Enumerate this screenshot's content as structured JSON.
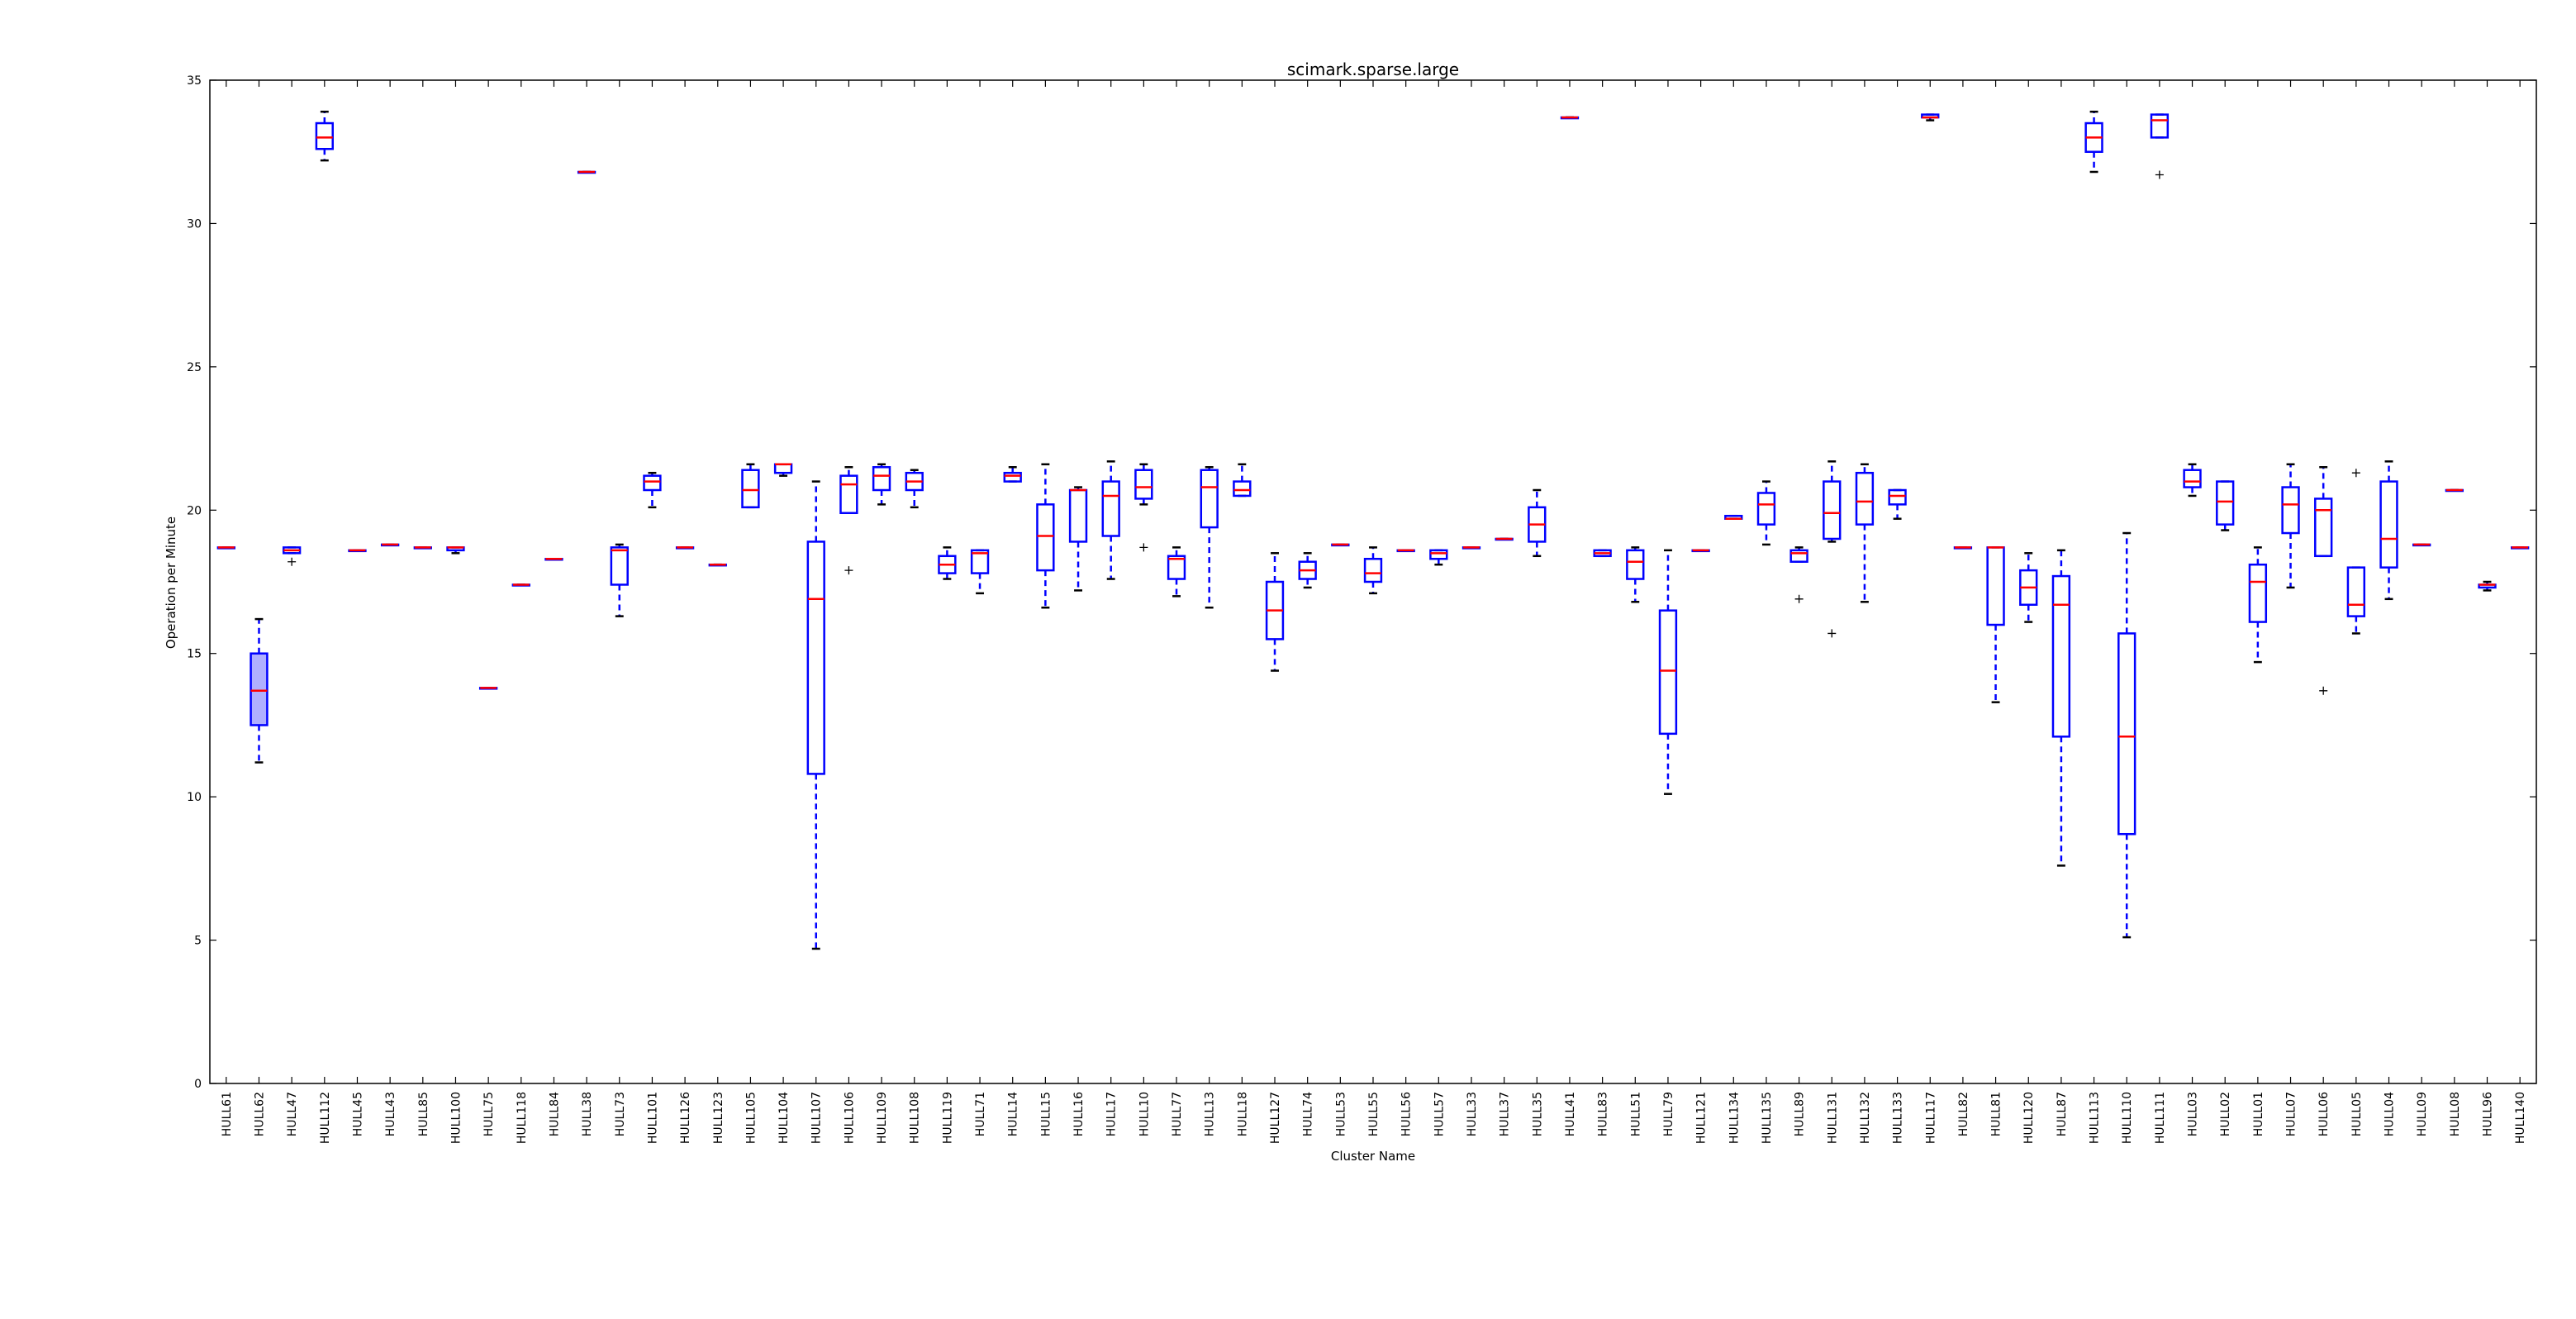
{
  "chart_data": {
    "type": "box",
    "title": "scimark.sparse.large",
    "xlabel": "Cluster Name",
    "ylabel": "Operation per Minute",
    "ylim": [
      0,
      35
    ],
    "yticks": [
      0,
      5,
      10,
      15,
      20,
      25,
      30,
      35
    ],
    "grid": false,
    "colors": {
      "box": "#0000ff",
      "median": "#ff0000",
      "axis": "#000000",
      "flier": "#000000",
      "filled_box": "#b0b0ff"
    },
    "categories": [
      {
        "name": "HULL61",
        "min": 18.7,
        "q1": 18.7,
        "median": 18.7,
        "q3": 18.7,
        "max": 18.7,
        "outliers": []
      },
      {
        "name": "HULL62",
        "min": 11.2,
        "q1": 12.5,
        "median": 13.7,
        "q3": 15.0,
        "max": 16.2,
        "outliers": [],
        "filled": true
      },
      {
        "name": "HULL47",
        "min": 18.5,
        "q1": 18.5,
        "median": 18.6,
        "q3": 18.7,
        "max": 18.7,
        "outliers": [
          18.2
        ]
      },
      {
        "name": "HULL112",
        "min": 32.2,
        "q1": 32.6,
        "median": 33.0,
        "q3": 33.5,
        "max": 33.9,
        "outliers": []
      },
      {
        "name": "HULL45",
        "min": 18.6,
        "q1": 18.6,
        "median": 18.6,
        "q3": 18.6,
        "max": 18.6,
        "outliers": []
      },
      {
        "name": "HULL43",
        "min": 18.8,
        "q1": 18.8,
        "median": 18.8,
        "q3": 18.8,
        "max": 18.8,
        "outliers": []
      },
      {
        "name": "HULL85",
        "min": 18.7,
        "q1": 18.7,
        "median": 18.7,
        "q3": 18.7,
        "max": 18.7,
        "outliers": []
      },
      {
        "name": "HULL100",
        "min": 18.5,
        "q1": 18.6,
        "median": 18.7,
        "q3": 18.7,
        "max": 18.7,
        "outliers": []
      },
      {
        "name": "HULL75",
        "min": 13.8,
        "q1": 13.8,
        "median": 13.8,
        "q3": 13.8,
        "max": 13.8,
        "outliers": []
      },
      {
        "name": "HULL118",
        "min": 17.4,
        "q1": 17.4,
        "median": 17.4,
        "q3": 17.4,
        "max": 17.4,
        "outliers": []
      },
      {
        "name": "HULL84",
        "min": 18.3,
        "q1": 18.3,
        "median": 18.3,
        "q3": 18.3,
        "max": 18.3,
        "outliers": []
      },
      {
        "name": "HULL38",
        "min": 31.8,
        "q1": 31.8,
        "median": 31.8,
        "q3": 31.8,
        "max": 31.8,
        "outliers": []
      },
      {
        "name": "HULL73",
        "min": 16.3,
        "q1": 17.4,
        "median": 18.6,
        "q3": 18.7,
        "max": 18.8,
        "outliers": []
      },
      {
        "name": "HULL101",
        "min": 20.1,
        "q1": 20.7,
        "median": 21.0,
        "q3": 21.2,
        "max": 21.3,
        "outliers": []
      },
      {
        "name": "HULL126",
        "min": 18.7,
        "q1": 18.7,
        "median": 18.7,
        "q3": 18.7,
        "max": 18.7,
        "outliers": []
      },
      {
        "name": "HULL123",
        "min": 18.1,
        "q1": 18.1,
        "median": 18.1,
        "q3": 18.1,
        "max": 18.1,
        "outliers": []
      },
      {
        "name": "HULL105",
        "min": 20.1,
        "q1": 20.1,
        "median": 20.7,
        "q3": 21.4,
        "max": 21.6,
        "outliers": []
      },
      {
        "name": "HULL104",
        "min": 21.2,
        "q1": 21.3,
        "median": 21.6,
        "q3": 21.6,
        "max": 21.6,
        "outliers": []
      },
      {
        "name": "HULL107",
        "min": 4.7,
        "q1": 10.8,
        "median": 16.9,
        "q3": 18.9,
        "max": 21.0,
        "outliers": []
      },
      {
        "name": "HULL106",
        "min": 19.9,
        "q1": 19.9,
        "median": 20.9,
        "q3": 21.2,
        "max": 21.5,
        "outliers": [
          17.9
        ]
      },
      {
        "name": "HULL109",
        "min": 20.2,
        "q1": 20.7,
        "median": 21.2,
        "q3": 21.5,
        "max": 21.6,
        "outliers": []
      },
      {
        "name": "HULL108",
        "min": 20.1,
        "q1": 20.7,
        "median": 21.0,
        "q3": 21.3,
        "max": 21.4,
        "outliers": []
      },
      {
        "name": "HULL119",
        "min": 17.6,
        "q1": 17.8,
        "median": 18.1,
        "q3": 18.4,
        "max": 18.7,
        "outliers": []
      },
      {
        "name": "HULL71",
        "min": 17.1,
        "q1": 17.8,
        "median": 18.5,
        "q3": 18.6,
        "max": 18.6,
        "outliers": []
      },
      {
        "name": "HULL14",
        "min": 21.0,
        "q1": 21.0,
        "median": 21.2,
        "q3": 21.3,
        "max": 21.5,
        "outliers": []
      },
      {
        "name": "HULL15",
        "min": 16.6,
        "q1": 17.9,
        "median": 19.1,
        "q3": 20.2,
        "max": 21.6,
        "outliers": []
      },
      {
        "name": "HULL16",
        "min": 17.2,
        "q1": 18.9,
        "median": 20.7,
        "q3": 20.7,
        "max": 20.8,
        "outliers": []
      },
      {
        "name": "HULL17",
        "min": 17.6,
        "q1": 19.1,
        "median": 20.5,
        "q3": 21.0,
        "max": 21.7,
        "outliers": []
      },
      {
        "name": "HULL10",
        "min": 20.2,
        "q1": 20.4,
        "median": 20.8,
        "q3": 21.4,
        "max": 21.6,
        "outliers": [
          18.7
        ]
      },
      {
        "name": "HULL77",
        "min": 17.0,
        "q1": 17.6,
        "median": 18.3,
        "q3": 18.4,
        "max": 18.7,
        "outliers": []
      },
      {
        "name": "HULL13",
        "min": 16.6,
        "q1": 19.4,
        "median": 20.8,
        "q3": 21.4,
        "max": 21.5,
        "outliers": []
      },
      {
        "name": "HULL18",
        "min": 20.5,
        "q1": 20.5,
        "median": 20.7,
        "q3": 21.0,
        "max": 21.6,
        "outliers": []
      },
      {
        "name": "HULL127",
        "min": 14.4,
        "q1": 15.5,
        "median": 16.5,
        "q3": 17.5,
        "max": 18.5,
        "outliers": []
      },
      {
        "name": "HULL74",
        "min": 17.3,
        "q1": 17.6,
        "median": 17.9,
        "q3": 18.2,
        "max": 18.5,
        "outliers": []
      },
      {
        "name": "HULL53",
        "min": 18.8,
        "q1": 18.8,
        "median": 18.8,
        "q3": 18.8,
        "max": 18.8,
        "outliers": []
      },
      {
        "name": "HULL55",
        "min": 17.1,
        "q1": 17.5,
        "median": 17.8,
        "q3": 18.3,
        "max": 18.7,
        "outliers": []
      },
      {
        "name": "HULL56",
        "min": 18.6,
        "q1": 18.6,
        "median": 18.6,
        "q3": 18.6,
        "max": 18.6,
        "outliers": []
      },
      {
        "name": "HULL57",
        "min": 18.1,
        "q1": 18.3,
        "median": 18.5,
        "q3": 18.6,
        "max": 18.6,
        "outliers": []
      },
      {
        "name": "HULL33",
        "min": 18.7,
        "q1": 18.7,
        "median": 18.7,
        "q3": 18.7,
        "max": 18.7,
        "outliers": []
      },
      {
        "name": "HULL37",
        "min": 19.0,
        "q1": 19.0,
        "median": 19.0,
        "q3": 19.0,
        "max": 19.0,
        "outliers": []
      },
      {
        "name": "HULL35",
        "min": 18.4,
        "q1": 18.9,
        "median": 19.5,
        "q3": 20.1,
        "max": 20.7,
        "outliers": []
      },
      {
        "name": "HULL41",
        "min": 33.7,
        "q1": 33.7,
        "median": 33.7,
        "q3": 33.7,
        "max": 33.7,
        "outliers": []
      },
      {
        "name": "HULL83",
        "min": 18.4,
        "q1": 18.4,
        "median": 18.5,
        "q3": 18.6,
        "max": 18.6,
        "outliers": []
      },
      {
        "name": "HULL51",
        "min": 16.8,
        "q1": 17.6,
        "median": 18.2,
        "q3": 18.6,
        "max": 18.7,
        "outliers": []
      },
      {
        "name": "HULL79",
        "min": 10.1,
        "q1": 12.2,
        "median": 14.4,
        "q3": 16.5,
        "max": 18.6,
        "outliers": []
      },
      {
        "name": "HULL121",
        "min": 18.6,
        "q1": 18.6,
        "median": 18.6,
        "q3": 18.6,
        "max": 18.6,
        "outliers": []
      },
      {
        "name": "HULL134",
        "min": 19.7,
        "q1": 19.7,
        "median": 19.7,
        "q3": 19.8,
        "max": 19.8,
        "outliers": []
      },
      {
        "name": "HULL135",
        "min": 18.8,
        "q1": 19.5,
        "median": 20.2,
        "q3": 20.6,
        "max": 21.0,
        "outliers": []
      },
      {
        "name": "HULL89",
        "min": 18.2,
        "q1": 18.2,
        "median": 18.5,
        "q3": 18.6,
        "max": 18.7,
        "outliers": [
          16.9
        ]
      },
      {
        "name": "HULL131",
        "min": 18.9,
        "q1": 19.0,
        "median": 19.9,
        "q3": 21.0,
        "max": 21.7,
        "outliers": [
          15.7
        ]
      },
      {
        "name": "HULL132",
        "min": 16.8,
        "q1": 19.5,
        "median": 20.3,
        "q3": 21.3,
        "max": 21.6,
        "outliers": []
      },
      {
        "name": "HULL133",
        "min": 19.7,
        "q1": 20.2,
        "median": 20.5,
        "q3": 20.7,
        "max": 20.7,
        "outliers": []
      },
      {
        "name": "HULL117",
        "min": 33.6,
        "q1": 33.7,
        "median": 33.7,
        "q3": 33.8,
        "max": 33.8,
        "outliers": []
      },
      {
        "name": "HULL82",
        "min": 18.7,
        "q1": 18.7,
        "median": 18.7,
        "q3": 18.7,
        "max": 18.7,
        "outliers": []
      },
      {
        "name": "HULL81",
        "min": 13.3,
        "q1": 16.0,
        "median": 18.7,
        "q3": 18.7,
        "max": 18.7,
        "outliers": []
      },
      {
        "name": "HULL120",
        "min": 16.1,
        "q1": 16.7,
        "median": 17.3,
        "q3": 17.9,
        "max": 18.5,
        "outliers": []
      },
      {
        "name": "HULL87",
        "min": 7.6,
        "q1": 12.1,
        "median": 16.7,
        "q3": 17.7,
        "max": 18.6,
        "outliers": []
      },
      {
        "name": "HULL113",
        "min": 31.8,
        "q1": 32.5,
        "median": 33.0,
        "q3": 33.5,
        "max": 33.9,
        "outliers": []
      },
      {
        "name": "HULL110",
        "min": 5.1,
        "q1": 8.7,
        "median": 12.1,
        "q3": 15.7,
        "max": 19.2,
        "outliers": []
      },
      {
        "name": "HULL111",
        "min": 33.0,
        "q1": 33.0,
        "median": 33.6,
        "q3": 33.8,
        "max": 33.8,
        "outliers": [
          31.7
        ]
      },
      {
        "name": "HULL03",
        "min": 20.5,
        "q1": 20.8,
        "median": 21.0,
        "q3": 21.4,
        "max": 21.6,
        "outliers": []
      },
      {
        "name": "HULL02",
        "min": 19.3,
        "q1": 19.5,
        "median": 20.3,
        "q3": 21.0,
        "max": 21.0,
        "outliers": []
      },
      {
        "name": "HULL01",
        "min": 14.7,
        "q1": 16.1,
        "median": 17.5,
        "q3": 18.1,
        "max": 18.7,
        "outliers": []
      },
      {
        "name": "HULL07",
        "min": 17.3,
        "q1": 19.2,
        "median": 20.2,
        "q3": 20.8,
        "max": 21.6,
        "outliers": []
      },
      {
        "name": "HULL06",
        "min": 18.4,
        "q1": 18.4,
        "median": 20.0,
        "q3": 20.4,
        "max": 21.5,
        "outliers": [
          13.7
        ]
      },
      {
        "name": "HULL05",
        "min": 15.7,
        "q1": 16.3,
        "median": 16.7,
        "q3": 18.0,
        "max": 18.0,
        "outliers": [
          21.3
        ]
      },
      {
        "name": "HULL04",
        "min": 16.9,
        "q1": 18.0,
        "median": 19.0,
        "q3": 21.0,
        "max": 21.7,
        "outliers": []
      },
      {
        "name": "HULL09",
        "min": 18.8,
        "q1": 18.8,
        "median": 18.8,
        "q3": 18.8,
        "max": 18.8,
        "outliers": []
      },
      {
        "name": "HULL08",
        "min": 20.7,
        "q1": 20.7,
        "median": 20.7,
        "q3": 20.7,
        "max": 20.7,
        "outliers": []
      },
      {
        "name": "HULL96",
        "min": 17.2,
        "q1": 17.3,
        "median": 17.4,
        "q3": 17.4,
        "max": 17.5,
        "outliers": []
      },
      {
        "name": "HULL140",
        "min": 18.7,
        "q1": 18.7,
        "median": 18.7,
        "q3": 18.7,
        "max": 18.7,
        "outliers": []
      }
    ]
  }
}
